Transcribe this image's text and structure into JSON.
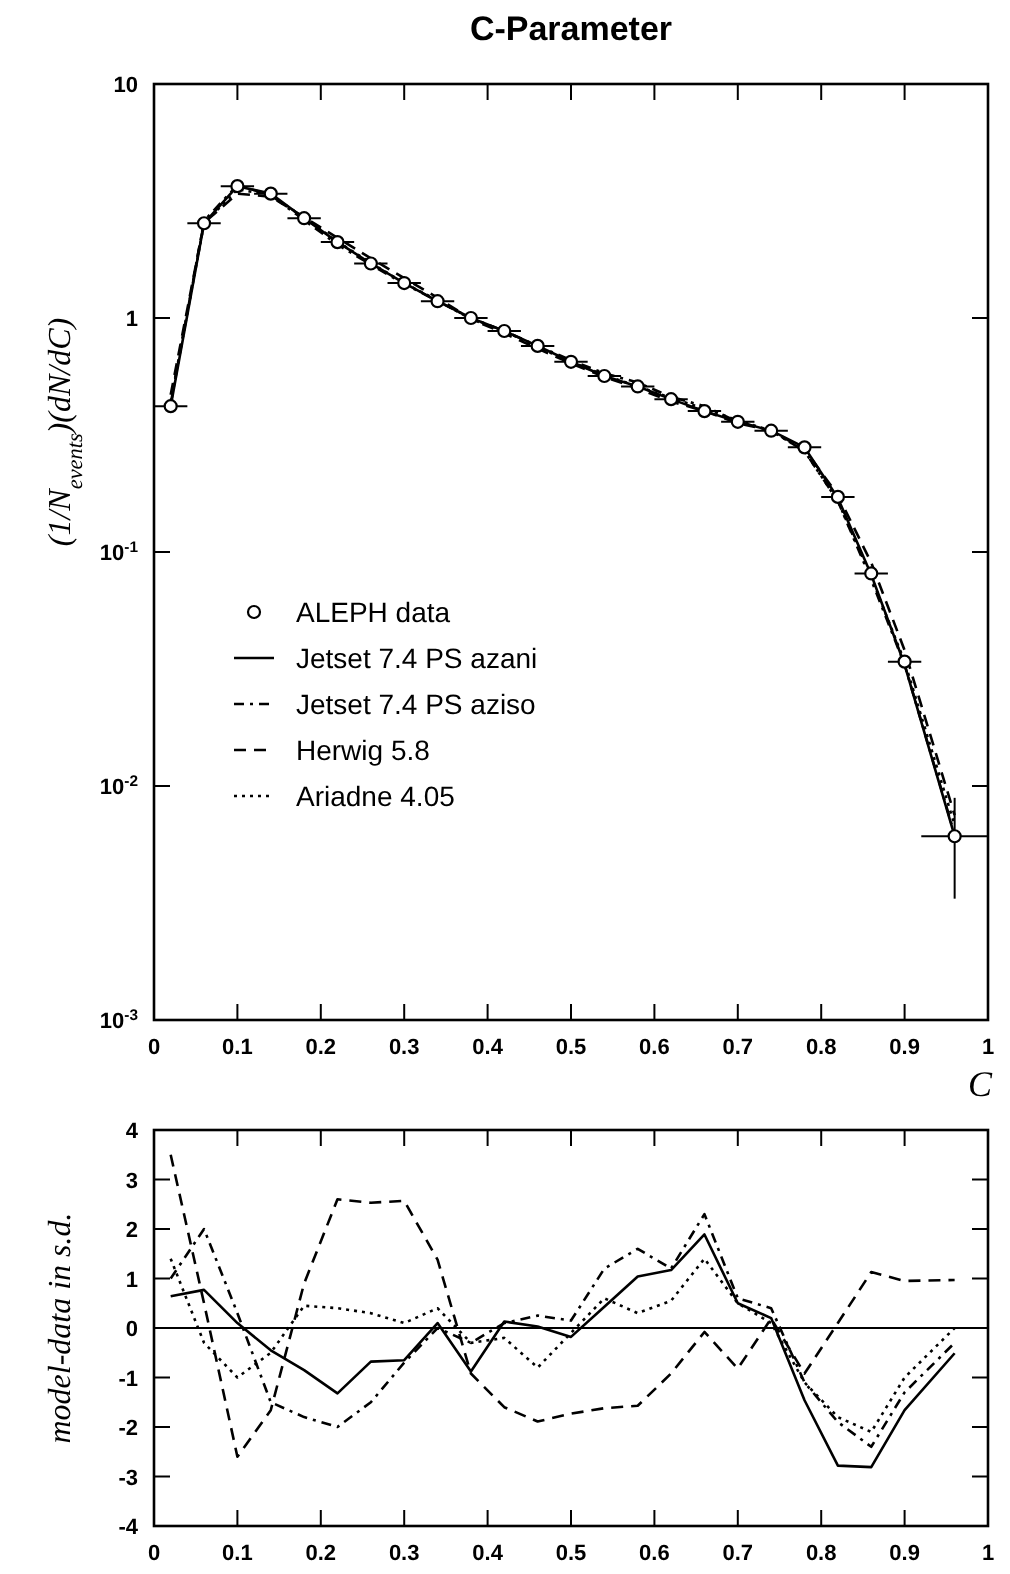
{
  "chart_data": [
    {
      "type": "line",
      "title": "C-Parameter",
      "xlabel": "C",
      "ylabel": "(1/N$_{events}$)(dN/dC)",
      "log": "y",
      "legend": "left",
      "x": [
        0.02,
        0.06,
        0.1,
        0.14,
        0.18,
        0.22,
        0.26,
        0.3,
        0.34,
        0.38,
        0.42,
        0.46,
        0.5,
        0.54,
        0.58,
        0.62,
        0.66,
        0.7,
        0.74,
        0.78,
        0.82,
        0.86,
        0.9,
        0.96
      ],
      "xlim": [
        0,
        1
      ],
      "xticks": [
        0,
        0.1,
        0.2,
        0.3,
        0.4,
        0.5,
        0.6,
        0.7,
        0.8,
        0.9,
        1
      ],
      "ylim": [
        0.001,
        10
      ],
      "yticks": [
        {
          "value": 0.001,
          "label": "10$^{-3}$"
        },
        {
          "value": 0.01,
          "label": "10$^{-2}$"
        },
        {
          "value": 0.1,
          "label": "10$^{-1}$"
        },
        1,
        10
      ],
      "series": [
        {
          "name": "ALEPH data",
          "type": "scatter",
          "marker": "circle",
          "color": "#000000",
          "values": [
            0.42,
            2.54,
            3.66,
            3.4,
            2.67,
            2.11,
            1.71,
            1.41,
            1.18,
            1.0,
            0.88,
            0.76,
            0.65,
            0.565,
            0.51,
            0.45,
            0.4,
            0.36,
            0.33,
            0.28,
            0.172,
            0.081,
            0.034,
            0.0061
          ],
          "xerrors": [
            0.02,
            0.02,
            0.02,
            0.02,
            0.02,
            0.02,
            0.02,
            0.02,
            0.02,
            0.02,
            0.02,
            0.02,
            0.02,
            0.02,
            0.02,
            0.02,
            0.02,
            0.02,
            0.02,
            0.02,
            0.02,
            0.02,
            0.02,
            0.04
          ],
          "errors": [
            null,
            null,
            null,
            null,
            null,
            null,
            null,
            null,
            null,
            null,
            null,
            null,
            null,
            null,
            null,
            null,
            null,
            null,
            null,
            null,
            null,
            null,
            null,
            [
              0.0033,
              0.0089
            ]
          ]
        },
        {
          "name": "Jetset 7.4 PS azani",
          "type": "line",
          "line_style": "solid",
          "color": "#000000",
          "values": [
            0.42,
            2.54,
            3.66,
            3.4,
            2.67,
            2.11,
            1.71,
            1.41,
            1.18,
            1.0,
            0.88,
            0.76,
            0.65,
            0.565,
            0.51,
            0.45,
            0.4,
            0.36,
            0.33,
            0.28,
            0.17,
            0.08,
            0.033,
            0.0061
          ]
        },
        {
          "name": "Jetset 7.4 PS aziso",
          "type": "line",
          "line_style": "dashdot",
          "color": "#000000",
          "values": [
            0.43,
            2.6,
            3.7,
            3.35,
            2.62,
            2.06,
            1.69,
            1.4,
            1.18,
            1.0,
            0.88,
            0.76,
            0.66,
            0.58,
            0.53,
            0.46,
            0.42,
            0.36,
            0.33,
            0.27,
            0.165,
            0.076,
            0.033,
            0.0062
          ]
        },
        {
          "name": "Herwig 5.8",
          "type": "line",
          "line_style": "dashed",
          "color": "#000000",
          "values": [
            0.47,
            2.55,
            3.4,
            3.3,
            2.7,
            2.2,
            1.8,
            1.48,
            1.22,
            0.99,
            0.86,
            0.74,
            0.64,
            0.56,
            0.5,
            0.44,
            0.4,
            0.355,
            0.33,
            0.275,
            0.175,
            0.09,
            0.038,
            0.0075
          ]
        },
        {
          "name": "Ariadne 4.05",
          "type": "line",
          "line_style": "dotted",
          "color": "#000000",
          "values": [
            0.44,
            2.53,
            3.55,
            3.35,
            2.69,
            2.12,
            1.72,
            1.41,
            1.19,
            0.99,
            0.88,
            0.75,
            0.65,
            0.57,
            0.51,
            0.455,
            0.41,
            0.365,
            0.33,
            0.27,
            0.165,
            0.078,
            0.034,
            0.0068
          ]
        }
      ]
    },
    {
      "type": "line",
      "ylabel": "model-data in s.d.",
      "x": [
        0.02,
        0.06,
        0.1,
        0.14,
        0.18,
        0.22,
        0.26,
        0.3,
        0.34,
        0.38,
        0.42,
        0.46,
        0.5,
        0.54,
        0.58,
        0.62,
        0.66,
        0.7,
        0.74,
        0.78,
        0.82,
        0.86,
        0.9,
        0.96
      ],
      "xlim": [
        0,
        1
      ],
      "xticks": [
        0,
        0.1,
        0.2,
        0.3,
        0.4,
        0.5,
        0.6,
        0.7,
        0.8,
        0.9,
        1
      ],
      "ylim": [
        -4,
        4
      ],
      "yticks": [
        -4,
        -3,
        -2,
        -1,
        0,
        1,
        2,
        3,
        4
      ],
      "ref_lines": [
        {
          "axis": "y",
          "value": 0
        }
      ],
      "series": [
        {
          "line_style": "solid",
          "color": "#000000",
          "values": [
            0.64,
            0.77,
            0.1,
            -0.45,
            -0.85,
            -1.32,
            -0.68,
            -0.65,
            0.1,
            -0.88,
            0.13,
            0.03,
            -0.18,
            0.43,
            1.04,
            1.17,
            1.89,
            0.5,
            0.2,
            -1.46,
            -2.78,
            -2.81,
            -1.66,
            -0.51
          ]
        },
        {
          "line_style": "dashdot",
          "color": "#000000",
          "values": [
            1.0,
            2.0,
            0.3,
            -1.5,
            -1.8,
            -2.0,
            -1.5,
            -0.7,
            0.0,
            -0.3,
            0.1,
            0.25,
            0.15,
            1.2,
            1.6,
            1.2,
            2.3,
            0.6,
            0.4,
            -1.1,
            -1.9,
            -2.4,
            -1.3,
            -0.3
          ]
        },
        {
          "line_style": "dashed",
          "color": "#000000",
          "values": [
            3.5,
            0.5,
            -2.6,
            -1.66,
            0.9,
            2.6,
            2.53,
            2.57,
            1.38,
            -0.92,
            -1.6,
            -1.89,
            -1.73,
            -1.62,
            -1.57,
            -0.92,
            -0.08,
            -0.82,
            0.19,
            -0.92,
            0.1,
            1.13,
            0.95,
            0.97
          ]
        },
        {
          "line_style": "dotted",
          "color": "#000000",
          "values": [
            1.4,
            -0.3,
            -1.0,
            -0.5,
            0.45,
            0.4,
            0.3,
            0.1,
            0.4,
            -0.3,
            -0.2,
            -0.8,
            -0.1,
            0.6,
            0.3,
            0.55,
            1.4,
            0.5,
            0.1,
            -1.1,
            -1.8,
            -2.1,
            -1.0,
            0.0
          ]
        }
      ]
    }
  ]
}
